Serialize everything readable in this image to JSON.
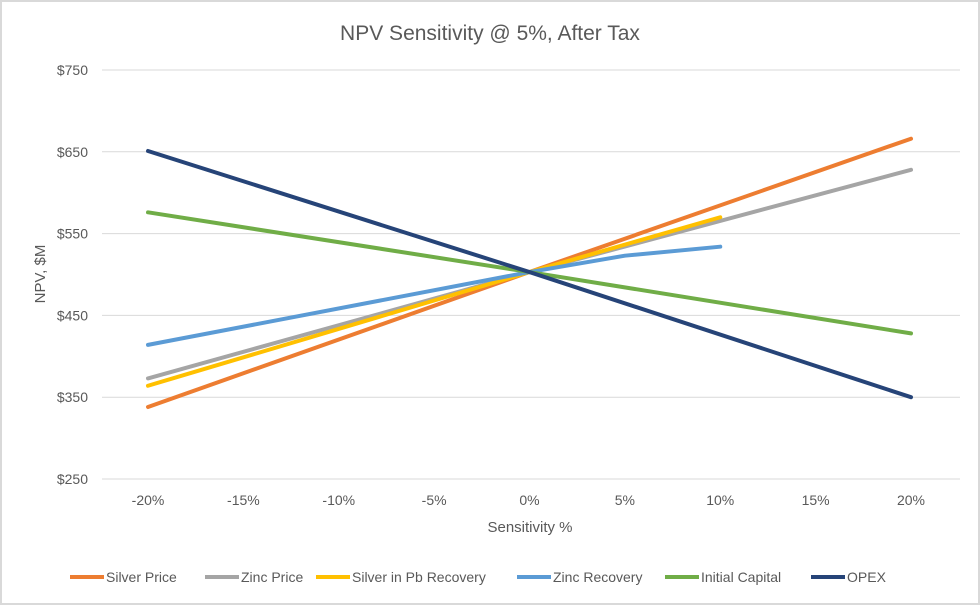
{
  "chart_data": {
    "type": "line",
    "title": "NPV Sensitivity @ 5%, After Tax",
    "xlabel": "Sensitivity %",
    "ylabel": "NPV, $M",
    "categories": [
      "-20%",
      "-15%",
      "-10%",
      "-5%",
      "0%",
      "5%",
      "10%",
      "15%",
      "20%"
    ],
    "x": [
      -20,
      -15,
      -10,
      -5,
      0,
      5,
      10,
      15,
      20
    ],
    "ylim": [
      250,
      750
    ],
    "yticks": [
      250,
      350,
      450,
      550,
      650,
      750
    ],
    "ytick_labels": [
      "$250",
      "$350",
      "$450",
      "$550",
      "$650",
      "$750"
    ],
    "grid": true,
    "legend": "bottom",
    "series": [
      {
        "name": "Silver Price",
        "color": "#ED7D31",
        "x": [
          -20,
          0,
          20
        ],
        "values": [
          338,
          503,
          666
        ]
      },
      {
        "name": "Zinc Price",
        "color": "#A5A5A5",
        "x": [
          -20,
          0,
          20
        ],
        "values": [
          373,
          503,
          628
        ]
      },
      {
        "name": "Silver in Pb Recovery",
        "color": "#FFC000",
        "x": [
          -20,
          0,
          10
        ],
        "values": [
          364,
          503,
          570
        ]
      },
      {
        "name": "Zinc Recovery",
        "color": "#5B9BD5",
        "x": [
          -20,
          0,
          5,
          10
        ],
        "values": [
          414,
          503,
          523,
          534
        ]
      },
      {
        "name": "Initial Capital",
        "color": "#70AD47",
        "x": [
          -20,
          0,
          20
        ],
        "values": [
          576,
          503,
          428
        ]
      },
      {
        "name": "OPEX",
        "color": "#264478",
        "x": [
          -20,
          0,
          20
        ],
        "values": [
          651,
          503,
          350
        ]
      }
    ]
  }
}
